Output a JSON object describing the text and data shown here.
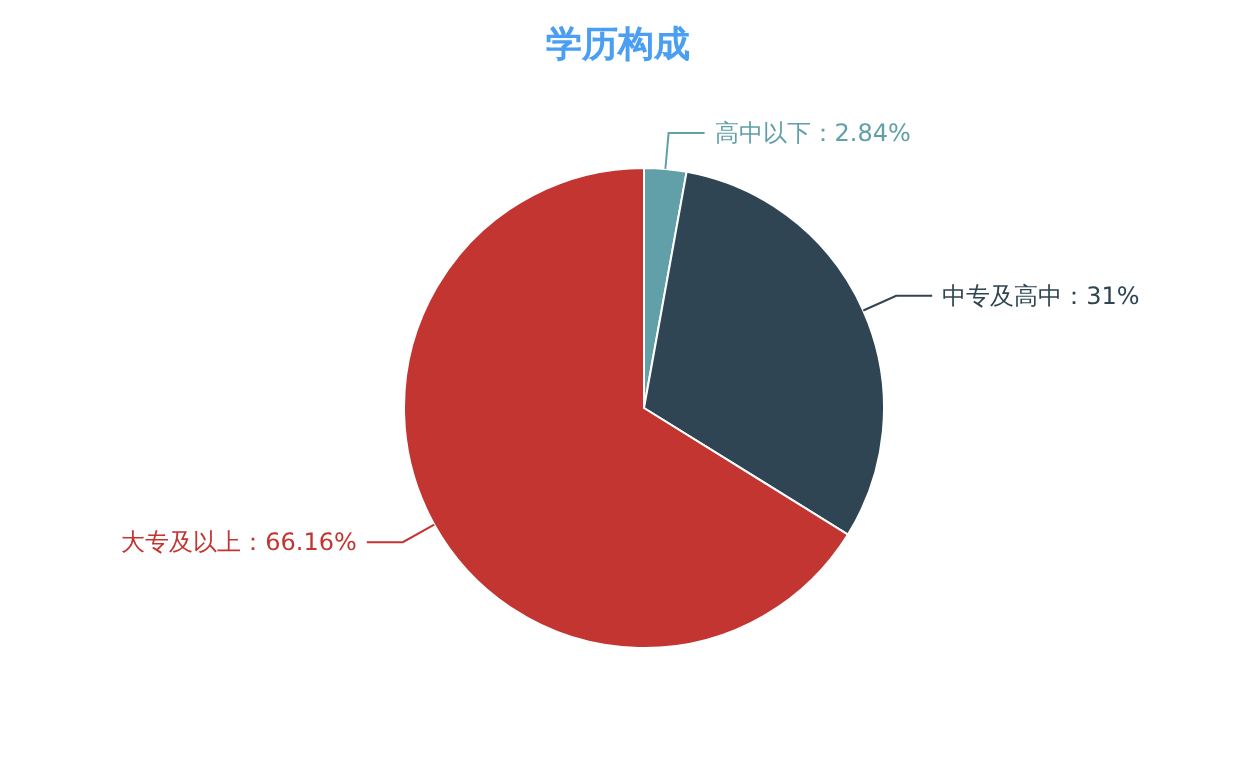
{
  "chart_data": {
    "type": "pie",
    "title": "学历构成",
    "categories": [
      "高中以下",
      "中专及高中",
      "大专及以上"
    ],
    "values": [
      2.84,
      31,
      66.16
    ],
    "value_labels": [
      "2.84%",
      "31%",
      "66.16%"
    ],
    "colors": [
      "#61a0a8",
      "#2f4554",
      "#c23531"
    ],
    "legend": false
  }
}
